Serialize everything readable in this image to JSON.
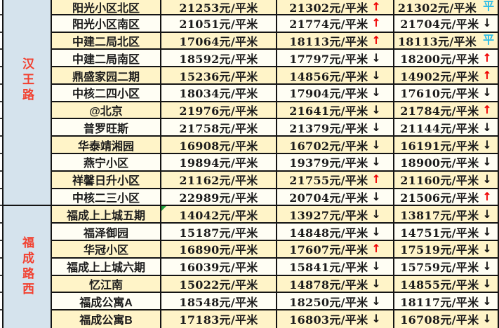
{
  "colors": {
    "row_yellow": "#FFF4C8",
    "row_ivory": "#FFFEF4",
    "label_bg_blue": "#D5E3ED",
    "label_text_red": "#F2402F",
    "text_dark": "#1b1b1b",
    "trend_up_red": "#F00000",
    "trend_down_black": "#141414",
    "trend_flat_cyan": "#29BCE8",
    "border_black": "#141414",
    "marker_green": "#1f9e3d"
  },
  "icons": {
    "up": "↑",
    "down": "↓",
    "flat": "平"
  },
  "table": {
    "groups": [
      {
        "label": "汉王路",
        "rows": [
          {
            "name": "阳光小区北区",
            "price1": "21253元/平米",
            "price2": "21302元/平米",
            "trend2": "up",
            "price3": "21302元/平米",
            "trend3": "flat"
          },
          {
            "name": "阳光小区南区",
            "price1": "21051元/平米",
            "price2": "21774元/平米",
            "trend2": "up",
            "price3": "21704元/平米",
            "trend3": "down"
          },
          {
            "name": "中建二局北区",
            "price1": "17064元/平米",
            "price2": "18113元/平米",
            "trend2": "up",
            "price3": "18113元/平米",
            "trend3": "flat"
          },
          {
            "name": "中建二局南区",
            "price1": "18592元/平米",
            "price2": "17797元/平米",
            "trend2": "down",
            "price3": "18200元/平米",
            "trend3": "up"
          },
          {
            "name": "鼎盛家园二期",
            "price1": "15236元/平米",
            "price2": "14856元/平米",
            "trend2": "down",
            "price3": "14902元/平米",
            "trend3": "up"
          },
          {
            "name": "中核二四小区",
            "price1": "18034元/平米",
            "price2": "17904元/平米",
            "trend2": "down",
            "price3": "17610元/平米",
            "trend3": "down"
          },
          {
            "name": "@北京",
            "price1": "21976元/平米",
            "price2": "21641元/平米",
            "trend2": "down",
            "price3": "21784元/平米",
            "trend3": "up"
          },
          {
            "name": "普罗旺斯",
            "price1": "21758元/平米",
            "price2": "21379元/平米",
            "trend2": "down",
            "price3": "21144元/平米",
            "trend3": "down"
          },
          {
            "name": "华泰靖湘园",
            "price1": "16908元/平米",
            "price2": "16702元/平米",
            "trend2": "down",
            "price3": "16191元/平米",
            "trend3": "down"
          },
          {
            "name": "燕宁小区",
            "price1": "19894元/平米",
            "price2": "19379元/平米",
            "trend2": "down",
            "price3": "18900元/平米",
            "trend3": "down"
          },
          {
            "name": "祥馨日升小区",
            "price1": "21162元/平米",
            "price2": "21755元/平米",
            "trend2": "up",
            "price3": "21160元/平米",
            "trend3": "down"
          },
          {
            "name": "中核二三小区",
            "price1": "22989元/平米",
            "price2": "20704元/平米",
            "trend2": "down",
            "price3": "21506元/平米",
            "trend3": "up"
          }
        ]
      },
      {
        "label": "福成路西",
        "rows": [
          {
            "name": "福成上上城五期",
            "price1": "14042元/平米",
            "corner_marker": true,
            "price2": "13927元/平米",
            "trend2": "down",
            "price3": "13817元/平米",
            "trend3": "down"
          },
          {
            "name": "福泽御园",
            "price1": "15187元/平米",
            "price2": "14848元/平米",
            "trend2": "down",
            "price3": "14751元/平米",
            "trend3": "down"
          },
          {
            "name": "华冠小区",
            "price1": "16890元/平米",
            "price2": "17607元/平米",
            "trend2": "up",
            "price3": "17519元/平米",
            "trend3": "down"
          },
          {
            "name": "福成上上城六期",
            "price1": "16039元/平米",
            "price2": "15841元/平米",
            "trend2": "down",
            "price3": "15759元/平米",
            "trend3": "down"
          },
          {
            "name": "忆江南",
            "price1": "15022元/平米",
            "price2": "14878元/平米",
            "trend2": "down",
            "price3": "14855元/平米",
            "trend3": "down"
          },
          {
            "name": "福成公寓A",
            "price1": "18548元/平米",
            "price2": "18250元/平米",
            "trend2": "down",
            "price3": "18117元/平米",
            "trend3": "down"
          },
          {
            "name": "福成公寓B",
            "price1": "17183元/平米",
            "price2": "16803元/平米",
            "trend2": "down",
            "price3": "16708元/平米",
            "trend3": "down"
          }
        ]
      }
    ]
  }
}
